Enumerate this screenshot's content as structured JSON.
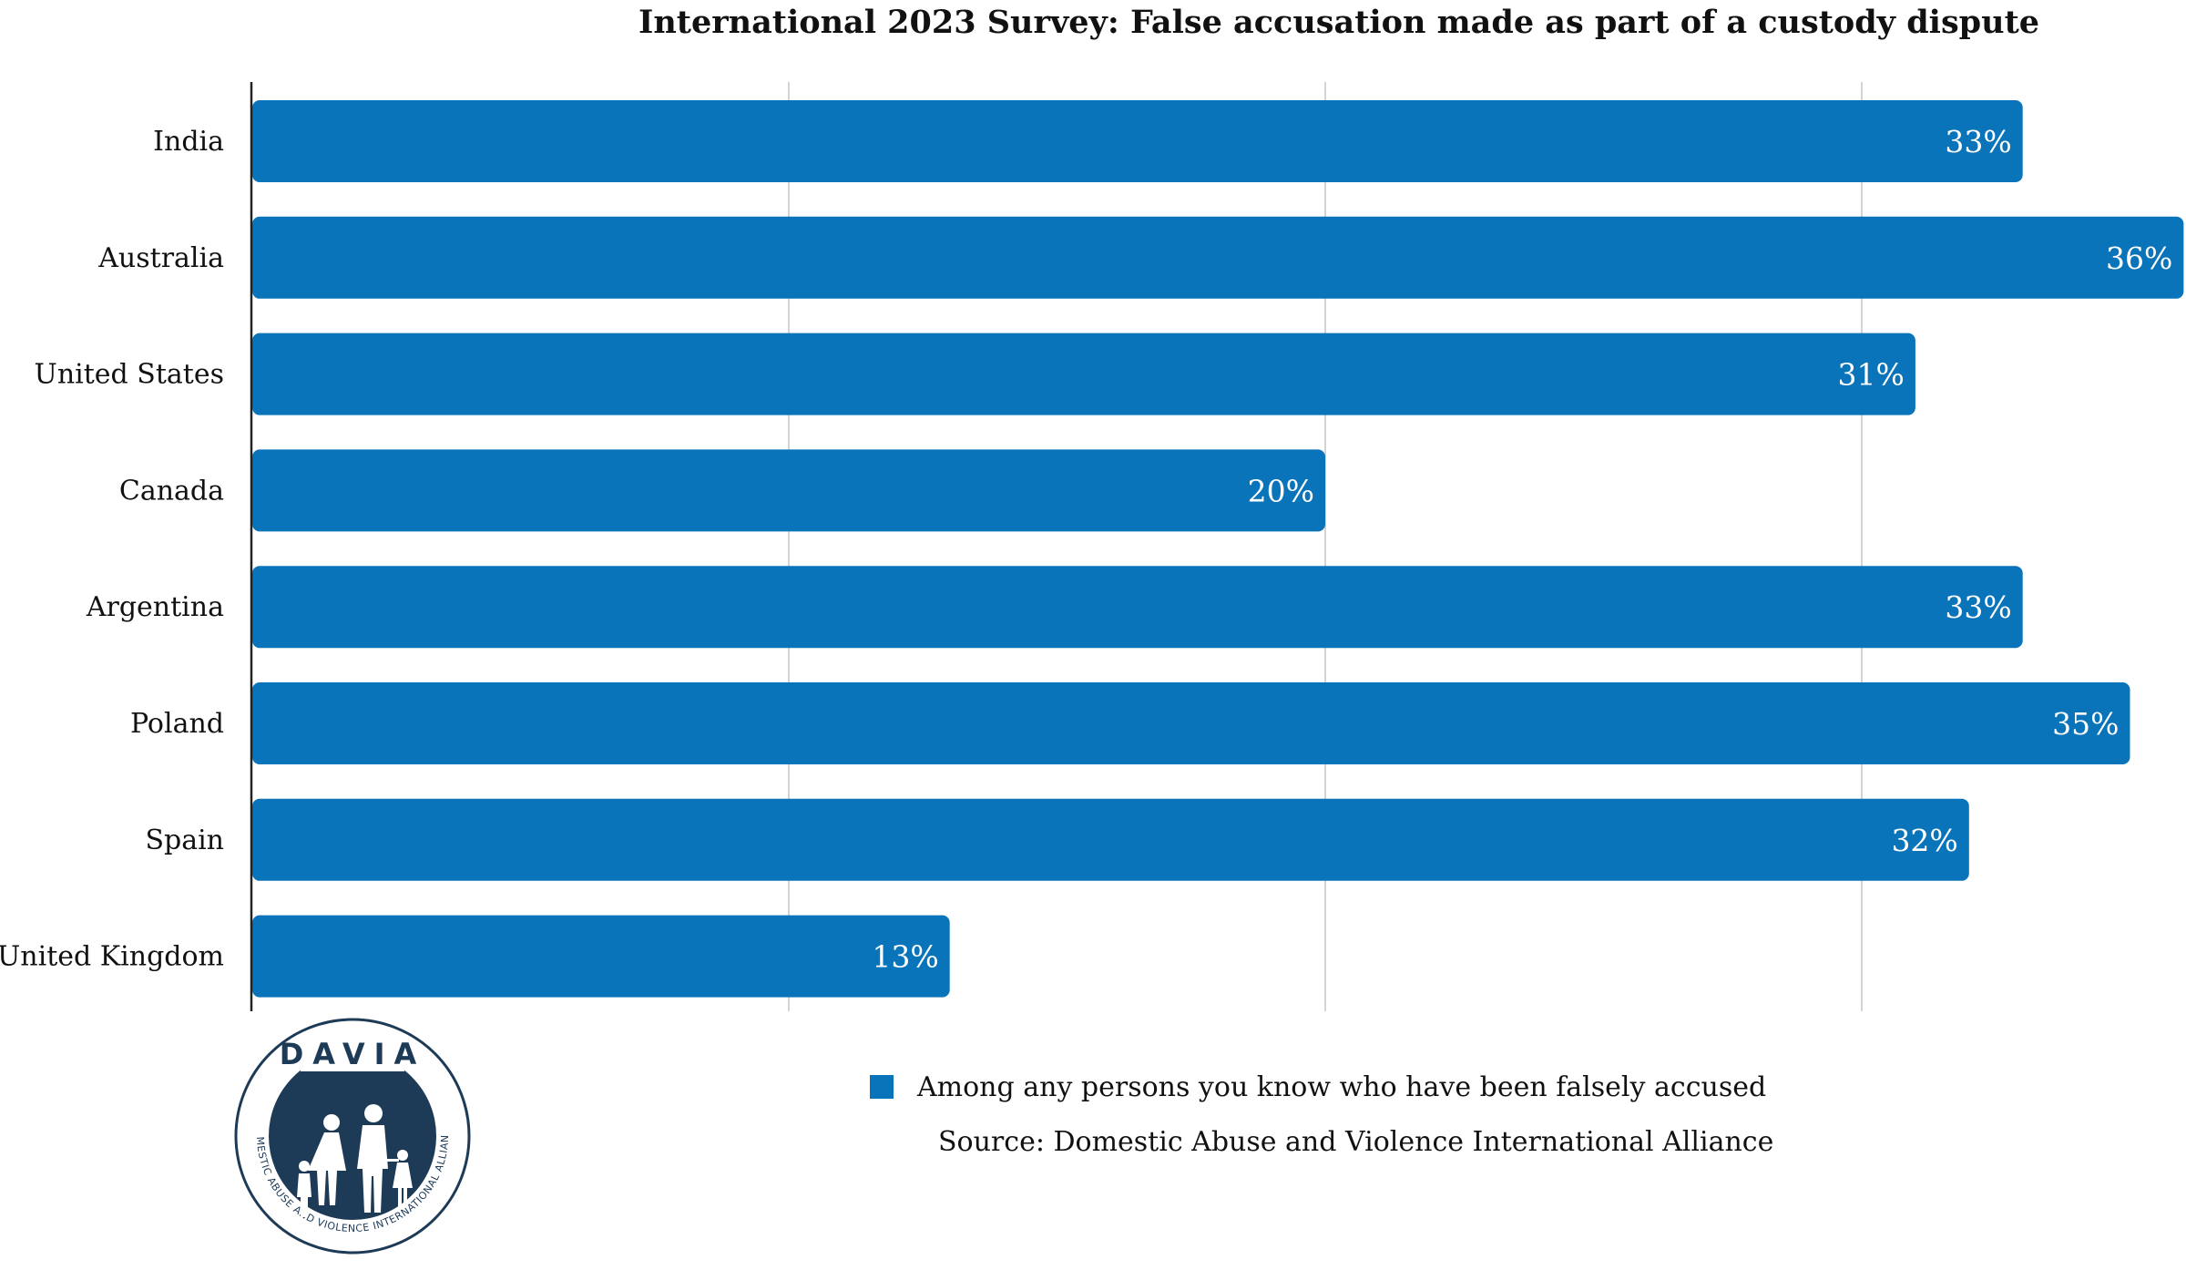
{
  "chart_data": {
    "type": "bar",
    "orientation": "horizontal",
    "title": "International 2023 Survey: False accusation made as part of a custody dispute",
    "categories": [
      "India",
      "Australia",
      "United States",
      "Canada",
      "Argentina",
      "Poland",
      "Spain",
      "United Kingdom"
    ],
    "series": [
      {
        "name": "Among any persons you know who have been falsely accused",
        "values": [
          33,
          36,
          31,
          20,
          33,
          35,
          32,
          13
        ]
      }
    ],
    "value_labels": [
      "33%",
      "36%",
      "31%",
      "20%",
      "33%",
      "35%",
      "32%",
      "13%"
    ],
    "xlim": [
      0,
      36
    ],
    "grid": true,
    "legend_position": "bottom",
    "bar_color": "#0a74ba"
  },
  "source": "Source: Domestic Abuse and Violence International Alliance",
  "logo": {
    "icon": "family-logo-icon",
    "acronym": "DAVIA",
    "full_name": "DOMESTIC ABUSE AND VIOLENCE INTERNATIONAL ALLIANCE",
    "color": "#1d3a57"
  }
}
